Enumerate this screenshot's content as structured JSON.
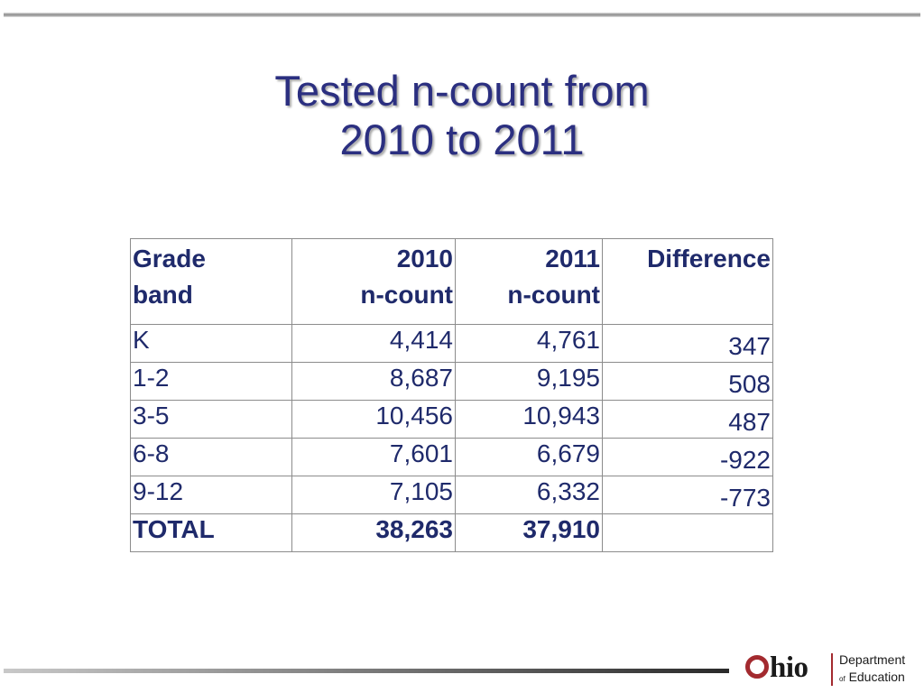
{
  "slide": {
    "title_line1": "Tested n-count from",
    "title_line2": "2010 to 2011"
  },
  "table": {
    "headers": {
      "band_line1": "Grade",
      "band_line2": "band",
      "y2010_line1": "2010",
      "y2010_line2": "n-count",
      "y2011_line1": "2011",
      "y2011_line2": "n-count",
      "difference": "Difference"
    },
    "rows": [
      {
        "band": "K",
        "y2010": "4,414",
        "y2011": "4,761",
        "difference": "347"
      },
      {
        "band": "1-2",
        "y2010": "8,687",
        "y2011": "9,195",
        "difference": "508"
      },
      {
        "band": "3-5",
        "y2010": "10,456",
        "y2011": "10,943",
        "difference": "487"
      },
      {
        "band": "6-8",
        "y2010": "7,601",
        "y2011": "6,679",
        "difference": "-922"
      },
      {
        "band": "9-12",
        "y2010": "7,105",
        "y2011": "6,332",
        "difference": "-773"
      }
    ],
    "total": {
      "band": "TOTAL",
      "y2010": "38,263",
      "y2011": "37,910",
      "difference": ""
    }
  },
  "logo": {
    "ohio_rest": "hio",
    "department": "Department",
    "of": "of",
    "education": "Education"
  },
  "colors": {
    "title": "#2b2f80",
    "table_text": "#1f2a6b",
    "logo_accent": "#a32a2f"
  }
}
